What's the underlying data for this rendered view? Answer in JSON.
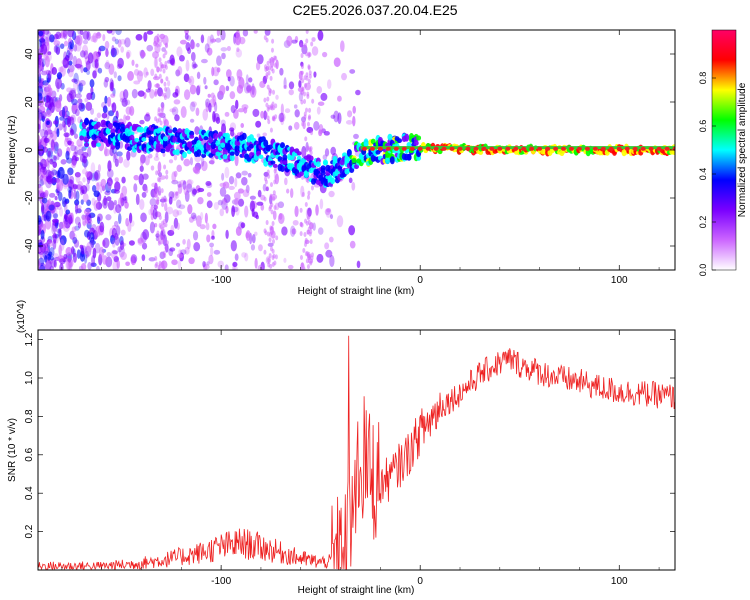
{
  "title": "C2E5.2026.037.20.04.E25",
  "chart_data": [
    {
      "type": "heatmap",
      "title": "C2E5.2026.037.20.04.E25",
      "xlabel": "Height of straight line (km)",
      "ylabel": "Frequency (Hz)",
      "xlim": [
        -192,
        128
      ],
      "ylim": [
        -50,
        50
      ],
      "xticks": [
        -100,
        0,
        100
      ],
      "yticks": [
        -40,
        -20,
        0,
        20,
        40
      ],
      "colorbar": {
        "label": "Normalized spectral amplitude",
        "range": [
          0.0,
          1.0
        ],
        "ticks": [
          "0.0",
          "0.2",
          "0.4",
          "0.6",
          "0.8"
        ],
        "colors": [
          "#ffffff",
          "#cc66ff",
          "#7a00ff",
          "#0000ff",
          "#00ffff",
          "#00ff00",
          "#ffff00",
          "#ff0000",
          "#ff0066"
        ]
      },
      "ridge": {
        "description": "dominant frequency vs height",
        "x": [
          -165,
          -140,
          -120,
          -100,
          -80,
          -65,
          -55,
          -45,
          -40,
          -35,
          -30,
          -20,
          -10,
          0,
          10,
          40,
          80,
          128
        ],
        "y": [
          7,
          5,
          3,
          2,
          0,
          -4,
          -8,
          -10,
          -7,
          -4,
          -1,
          0,
          1,
          1,
          0.5,
          0,
          0,
          0
        ]
      }
    },
    {
      "type": "line",
      "xlabel": "Height of straight line (km)",
      "ylabel": "SNR (10 * v/v)",
      "y_multiplier": "(x10^4)",
      "xlim": [
        -192,
        128
      ],
      "ylim": [
        0,
        1.25
      ],
      "xticks": [
        -100,
        0,
        100
      ],
      "yticks": [
        0.2,
        0.4,
        0.6,
        0.8,
        1.0,
        1.2
      ],
      "series": [
        {
          "name": "SNR",
          "color": "#ee2222",
          "x": [
            -192,
            -160,
            -145,
            -130,
            -120,
            -110,
            -100,
            -90,
            -80,
            -70,
            -60,
            -50,
            -40,
            -35,
            -30,
            -25,
            -20,
            -15,
            -10,
            -5,
            0,
            5,
            10,
            20,
            30,
            40,
            45,
            50,
            60,
            70,
            80,
            90,
            100,
            110,
            120,
            128
          ],
          "y": [
            0.02,
            0.02,
            0.03,
            0.05,
            0.07,
            0.09,
            0.12,
            0.14,
            0.12,
            0.09,
            0.06,
            0.04,
            0.05,
            0.2,
            0.6,
            0.5,
            0.45,
            0.48,
            0.55,
            0.62,
            0.72,
            0.78,
            0.85,
            0.92,
            1.02,
            1.08,
            1.1,
            1.07,
            1.03,
            1.0,
            0.98,
            0.95,
            0.93,
            0.92,
            0.91,
            0.9
          ]
        }
      ]
    }
  ]
}
